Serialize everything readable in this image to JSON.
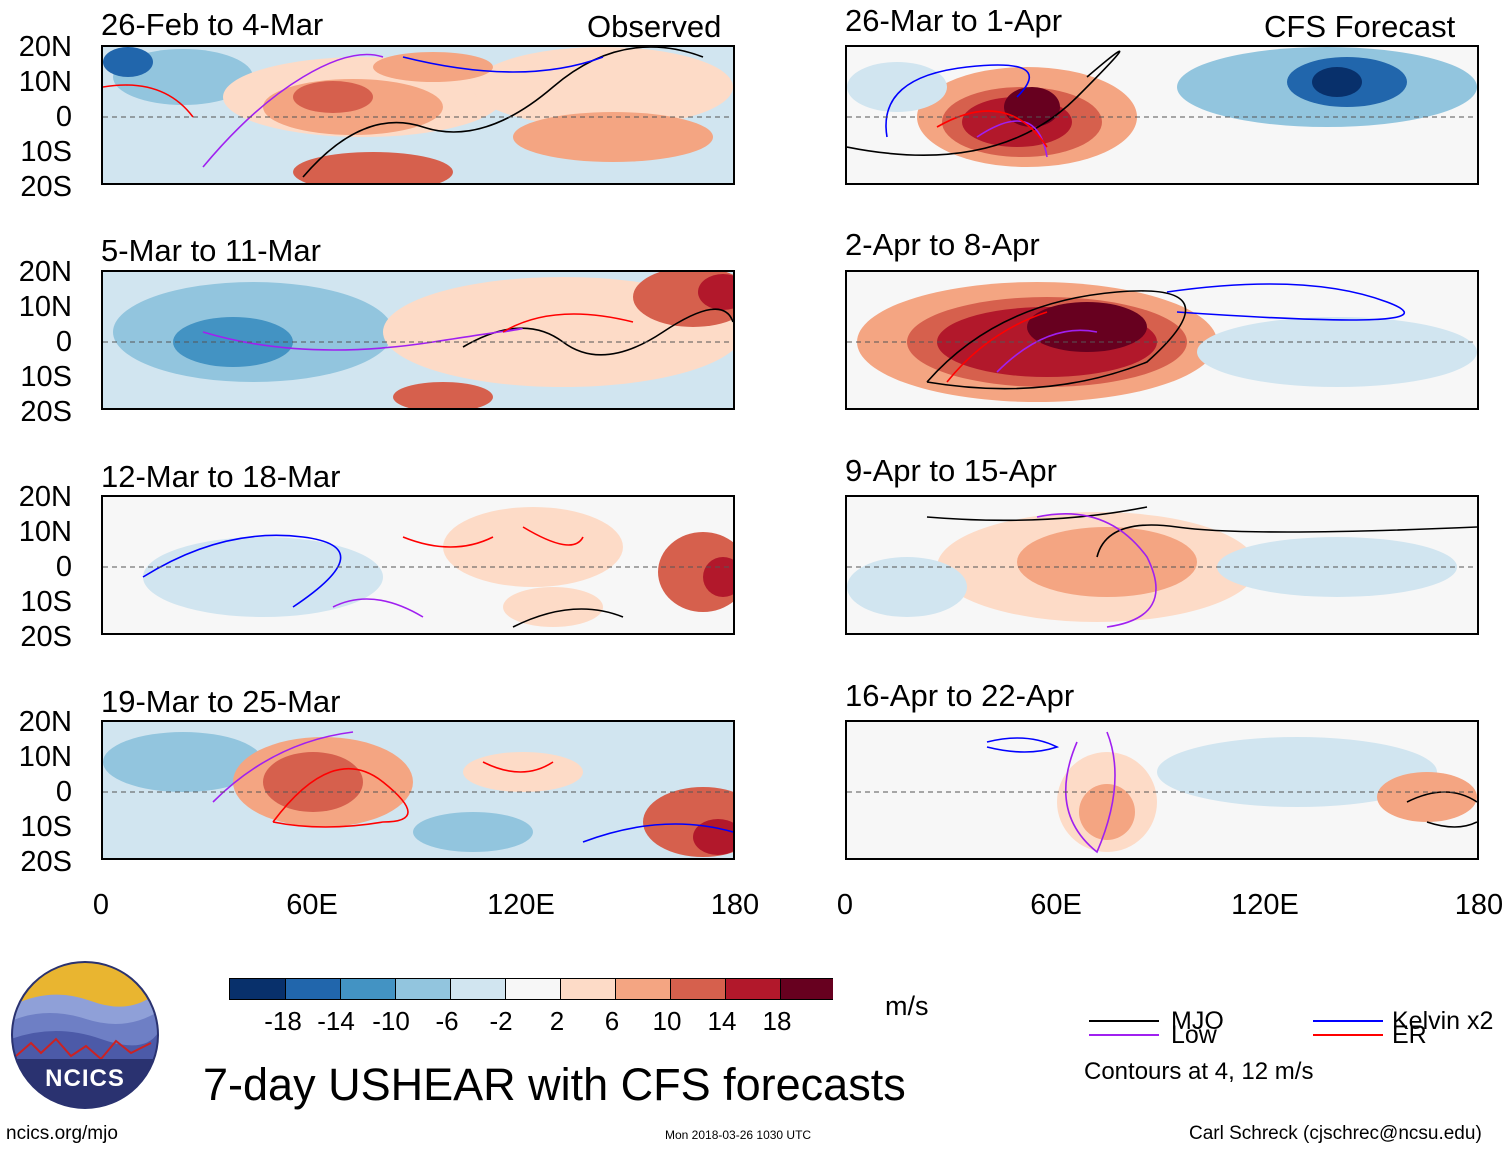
{
  "panels_observed": [
    {
      "title": "26-Feb to 4-Mar",
      "tag": "Observed"
    },
    {
      "title": "5-Mar to 11-Mar",
      "tag": ""
    },
    {
      "title": "12-Mar to 18-Mar",
      "tag": ""
    },
    {
      "title": "19-Mar to 25-Mar",
      "tag": ""
    }
  ],
  "panels_forecast": [
    {
      "title": "26-Mar to 1-Apr",
      "tag": "CFS Forecast"
    },
    {
      "title": "2-Apr to 8-Apr",
      "tag": ""
    },
    {
      "title": "9-Apr to 15-Apr",
      "tag": ""
    },
    {
      "title": "16-Apr to 22-Apr",
      "tag": ""
    }
  ],
  "lat_labels": [
    "20N",
    "10N",
    "0",
    "10S",
    "20S"
  ],
  "lon_labels": [
    "0",
    "60E",
    "120E",
    "180"
  ],
  "colorbar": {
    "unit": "m/s",
    "labels": [
      "-18",
      "-14",
      "-10",
      "-6",
      "-2",
      "2",
      "6",
      "10",
      "14",
      "18"
    ],
    "colors": [
      "#08306b",
      "#2166ac",
      "#4393c3",
      "#92c5de",
      "#d1e5f0",
      "#f7f7f7",
      "#fddbc7",
      "#f4a582",
      "#d6604d",
      "#b2182b",
      "#67001f"
    ]
  },
  "legend": {
    "mjo": "MJO",
    "low": "Low",
    "kelvin": "Kelvin x2",
    "er": "ER",
    "contours_note": "Contours at 4, 12 m/s",
    "colors": {
      "mjo": "#000000",
      "low": "#a020f0",
      "kelvin": "#0000ff",
      "er": "#ff0000"
    }
  },
  "main_title": "7-day USHEAR with CFS forecasts",
  "logo_text": "NCICS",
  "footer": {
    "url": "ncics.org/mjo",
    "timestamp": "Mon 2018-03-26 1030 UTC",
    "credit": "Carl Schreck (cjschrec@ncsu.edu)"
  }
}
